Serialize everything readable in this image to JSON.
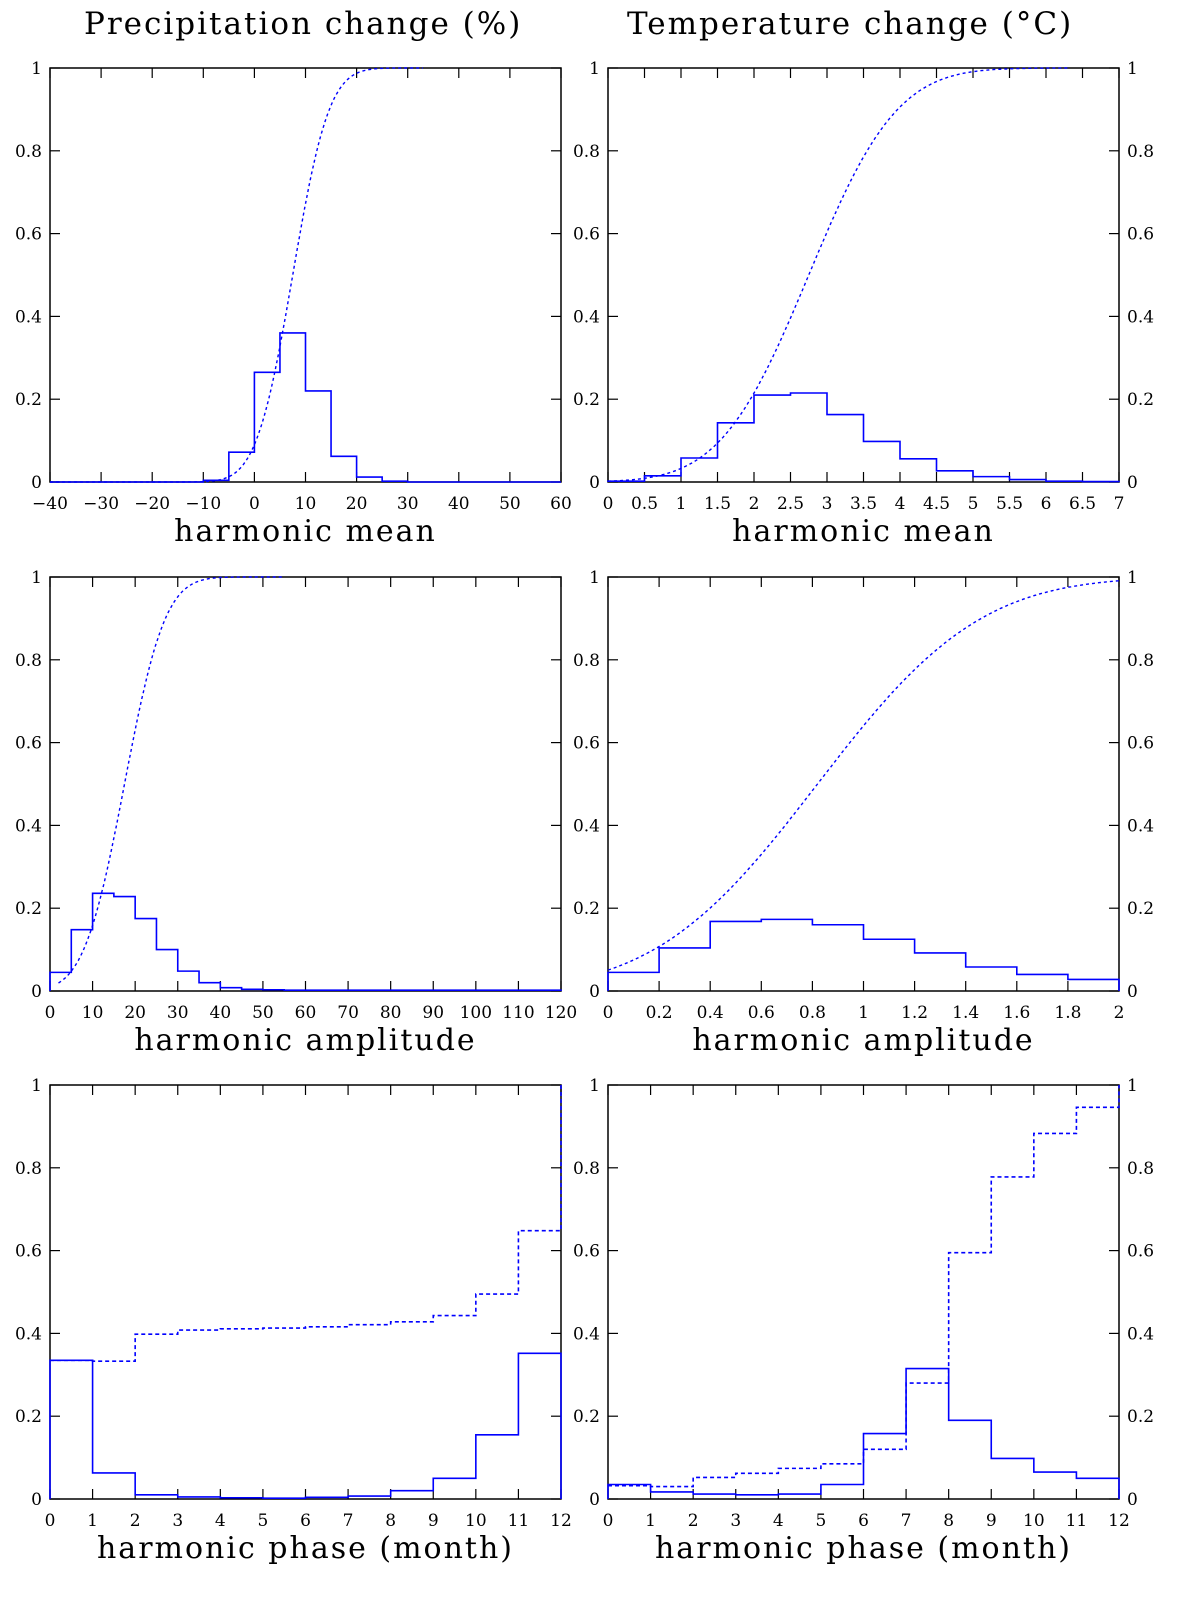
{
  "columns": {
    "left_title": "Precipitation change (%)",
    "right_title": "Temperature change (°C)"
  },
  "colors": {
    "line": "#0000ff",
    "axis": "#000000"
  },
  "chart_data": [
    {
      "id": "precip_mean",
      "type": "line",
      "xlabel": "harmonic mean",
      "xlim": [
        -40,
        60
      ],
      "ylim": [
        0,
        1
      ],
      "xticks": [
        -40,
        -30,
        -20,
        -10,
        0,
        10,
        20,
        30,
        40,
        50,
        60
      ],
      "xtick_labels": [
        "−40",
        "−30",
        "−20",
        "−10",
        "0",
        "10",
        "20",
        "30",
        "40",
        "50",
        "60"
      ],
      "yticks": [
        0,
        0.2,
        0.4,
        0.6,
        0.8,
        1
      ],
      "ytick_labels": [
        "0",
        "0.2",
        "0.4",
        "0.6",
        "0.8",
        "1"
      ],
      "right_axis_labels": false,
      "series": [
        {
          "style": "hist",
          "edges": [
            -40,
            -35,
            -30,
            -25,
            -20,
            -15,
            -10,
            -5,
            0,
            5,
            10,
            15,
            20,
            25,
            30,
            35,
            40,
            45,
            50,
            55,
            60
          ],
          "values": [
            0,
            0,
            0,
            0,
            0,
            0,
            0.004,
            0.072,
            0.265,
            0.36,
            0.22,
            0.062,
            0.012,
            0.002,
            0,
            0,
            0,
            0,
            0,
            0
          ]
        },
        {
          "style": "cdf",
          "mu": 7.5,
          "sigma": 5.6,
          "x_end": 33
        }
      ]
    },
    {
      "id": "temp_mean",
      "type": "line",
      "xlabel": "harmonic mean",
      "xlim": [
        0,
        7
      ],
      "ylim": [
        0,
        1
      ],
      "xticks": [
        0,
        0.5,
        1,
        1.5,
        2,
        2.5,
        3,
        3.5,
        4,
        4.5,
        5,
        5.5,
        6,
        6.5,
        7
      ],
      "xtick_labels": [
        "0",
        "0.5",
        "1",
        "1.5",
        "2",
        "2.5",
        "3",
        "3.5",
        "4",
        "4.5",
        "5",
        "5.5",
        "6",
        "6.5",
        "7"
      ],
      "yticks": [
        0,
        0.2,
        0.4,
        0.6,
        0.8,
        1
      ],
      "ytick_labels": [
        "0",
        "0.2",
        "0.4",
        "0.6",
        "0.8",
        "1"
      ],
      "right_axis_labels": true,
      "series": [
        {
          "style": "hist",
          "edges": [
            0,
            0.5,
            1,
            1.5,
            2,
            2.5,
            3,
            3.5,
            4,
            4.5,
            5,
            5.5,
            6,
            6.5,
            7
          ],
          "values": [
            0.002,
            0.015,
            0.058,
            0.143,
            0.21,
            0.215,
            0.163,
            0.098,
            0.056,
            0.027,
            0.013,
            0.006,
            0.002,
            0.001
          ]
        },
        {
          "style": "cdf",
          "mu": 2.75,
          "sigma": 0.95,
          "x_end": 6.3
        }
      ]
    },
    {
      "id": "precip_amplitude",
      "type": "line",
      "xlabel": "harmonic amplitude",
      "xlim": [
        0,
        120
      ],
      "ylim": [
        0,
        1
      ],
      "xticks": [
        0,
        10,
        20,
        30,
        40,
        50,
        60,
        70,
        80,
        90,
        100,
        110,
        120
      ],
      "xtick_labels": [
        "0",
        "10",
        "20",
        "30",
        "40",
        "50",
        "60",
        "70",
        "80",
        "90",
        "100",
        "110",
        "120"
      ],
      "yticks": [
        0,
        0.2,
        0.4,
        0.6,
        0.8,
        1
      ],
      "ytick_labels": [
        "0",
        "0.2",
        "0.4",
        "0.6",
        "0.8",
        "1"
      ],
      "right_axis_labels": false,
      "series": [
        {
          "style": "hist",
          "edges": [
            0,
            5,
            10,
            15,
            20,
            25,
            30,
            35,
            40,
            45,
            50,
            55,
            60,
            65,
            70,
            75,
            80,
            85,
            90,
            95,
            100,
            105,
            110,
            115,
            120
          ],
          "values": [
            0.045,
            0.148,
            0.236,
            0.228,
            0.175,
            0.1,
            0.048,
            0.02,
            0.008,
            0.004,
            0.003,
            0.002,
            0.002,
            0.002,
            0.002,
            0.002,
            0.002,
            0.002,
            0.002,
            0.002,
            0.002,
            0.002,
            0.002,
            0.002
          ]
        },
        {
          "style": "cdf",
          "mu": 17.5,
          "sigma": 7.5,
          "x_end": 55,
          "lower": 2
        }
      ]
    },
    {
      "id": "temp_amplitude",
      "type": "line",
      "xlabel": "harmonic amplitude",
      "xlim": [
        0,
        2
      ],
      "ylim": [
        0,
        1
      ],
      "xticks": [
        0,
        0.2,
        0.4,
        0.6,
        0.8,
        1,
        1.2,
        1.4,
        1.6,
        1.8,
        2
      ],
      "xtick_labels": [
        "0",
        "0.2",
        "0.4",
        "0.6",
        "0.8",
        "1",
        "1.2",
        "1.4",
        "1.6",
        "1.8",
        "2"
      ],
      "yticks": [
        0,
        0.2,
        0.4,
        0.6,
        0.8,
        1
      ],
      "ytick_labels": [
        "0",
        "0.2",
        "0.4",
        "0.6",
        "0.8",
        "1"
      ],
      "right_axis_labels": true,
      "series": [
        {
          "style": "hist",
          "edges": [
            0,
            0.2,
            0.4,
            0.6,
            0.8,
            1.0,
            1.2,
            1.4,
            1.6,
            1.8,
            2.0
          ],
          "values": [
            0.045,
            0.104,
            0.168,
            0.173,
            0.16,
            0.125,
            0.092,
            0.058,
            0.04,
            0.028
          ]
        },
        {
          "style": "cdf",
          "mu": 0.82,
          "sigma": 0.5,
          "x_end": 2.0,
          "lower": 0
        }
      ]
    },
    {
      "id": "precip_phase",
      "type": "line",
      "xlabel": "harmonic phase (month)",
      "xlim": [
        0,
        12
      ],
      "ylim": [
        0,
        1
      ],
      "xticks": [
        0,
        1,
        2,
        3,
        4,
        5,
        6,
        7,
        8,
        9,
        10,
        11,
        12
      ],
      "xtick_labels": [
        "0",
        "1",
        "2",
        "3",
        "4",
        "5",
        "6",
        "7",
        "8",
        "9",
        "10",
        "11",
        "12"
      ],
      "yticks": [
        0,
        0.2,
        0.4,
        0.6,
        0.8,
        1
      ],
      "ytick_labels": [
        "0",
        "0.2",
        "0.4",
        "0.6",
        "0.8",
        "1"
      ],
      "right_axis_labels": false,
      "series": [
        {
          "style": "hist",
          "edges": [
            0,
            1,
            2,
            3,
            4,
            5,
            6,
            7,
            8,
            9,
            10,
            11,
            12
          ],
          "values": [
            0.335,
            0.063,
            0.01,
            0.005,
            0.003,
            0.002,
            0.004,
            0.007,
            0.02,
            0.05,
            0.155,
            0.352
          ]
        },
        {
          "style": "step_dashed",
          "edges": [
            0,
            1,
            2,
            3,
            4,
            5,
            6,
            7,
            8,
            9,
            10,
            11,
            12
          ],
          "values": [
            0.335,
            0.333,
            0.398,
            0.408,
            0.411,
            0.413,
            0.416,
            0.421,
            0.428,
            0.443,
            0.495,
            0.648
          ]
        }
      ]
    },
    {
      "id": "temp_phase",
      "type": "line",
      "xlabel": "harmonic phase (month)",
      "xlim": [
        0,
        12
      ],
      "ylim": [
        0,
        1
      ],
      "xticks": [
        0,
        1,
        2,
        3,
        4,
        5,
        6,
        7,
        8,
        9,
        10,
        11,
        12
      ],
      "xtick_labels": [
        "0",
        "1",
        "2",
        "3",
        "4",
        "5",
        "6",
        "7",
        "8",
        "9",
        "10",
        "11",
        "12"
      ],
      "yticks": [
        0,
        0.2,
        0.4,
        0.6,
        0.8,
        1
      ],
      "ytick_labels": [
        "0",
        "0.2",
        "0.4",
        "0.6",
        "0.8",
        "1"
      ],
      "right_axis_labels": true,
      "series": [
        {
          "style": "hist",
          "edges": [
            0,
            1,
            2,
            3,
            4,
            5,
            6,
            7,
            8,
            9,
            10,
            11,
            12
          ],
          "values": [
            0.035,
            0.017,
            0.012,
            0.01,
            0.012,
            0.035,
            0.158,
            0.315,
            0.19,
            0.098,
            0.065,
            0.05
          ]
        },
        {
          "style": "step_dashed",
          "edges": [
            0,
            1,
            2,
            3,
            4,
            5,
            6,
            7,
            8,
            9,
            10,
            11,
            12
          ],
          "values": [
            0.032,
            0.03,
            0.052,
            0.062,
            0.074,
            0.085,
            0.12,
            0.28,
            0.595,
            0.778,
            0.883,
            0.946
          ]
        }
      ]
    }
  ]
}
